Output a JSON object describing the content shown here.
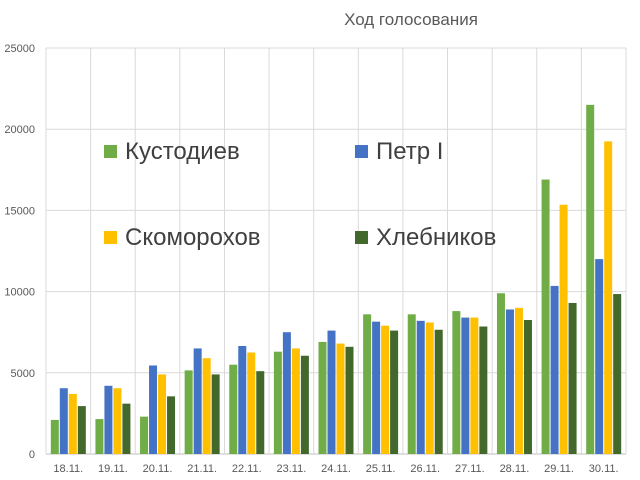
{
  "chart_data": {
    "type": "bar",
    "title": "Ход голосования",
    "xlabel": "",
    "ylabel": "",
    "ylim": [
      0,
      25000
    ],
    "yticks": [
      0,
      5000,
      10000,
      15000,
      20000,
      25000
    ],
    "grid": true,
    "legend_position": "inside-upper-left",
    "categories": [
      "18.11.",
      "19.11.",
      "20.11.",
      "21.11.",
      "22.11.",
      "23.11.",
      "24.11.",
      "25.11.",
      "26.11.",
      "27.11.",
      "28.11.",
      "29.11.",
      "30.11."
    ],
    "series": [
      {
        "name": "Кустодиев",
        "color": "#70ad47",
        "values": [
          2100,
          2150,
          2300,
          5150,
          5500,
          6300,
          6900,
          8600,
          8600,
          8800,
          9900,
          16900,
          21500
        ]
      },
      {
        "name": "Петр I",
        "color": "#4472c4",
        "values": [
          4050,
          4200,
          5450,
          6500,
          6650,
          7500,
          7600,
          8150,
          8200,
          8400,
          8900,
          10350,
          12000
        ]
      },
      {
        "name": "Скоморохов",
        "color": "#ffc000",
        "values": [
          3700,
          4050,
          4900,
          5900,
          6250,
          6500,
          6800,
          7900,
          8100,
          8400,
          9000,
          15350,
          19250
        ]
      },
      {
        "name": "Хлебников",
        "color": "#43682b",
        "values": [
          2950,
          3100,
          3550,
          4900,
          5100,
          6050,
          6600,
          7600,
          7650,
          7850,
          8250,
          9300,
          9850
        ]
      }
    ]
  }
}
